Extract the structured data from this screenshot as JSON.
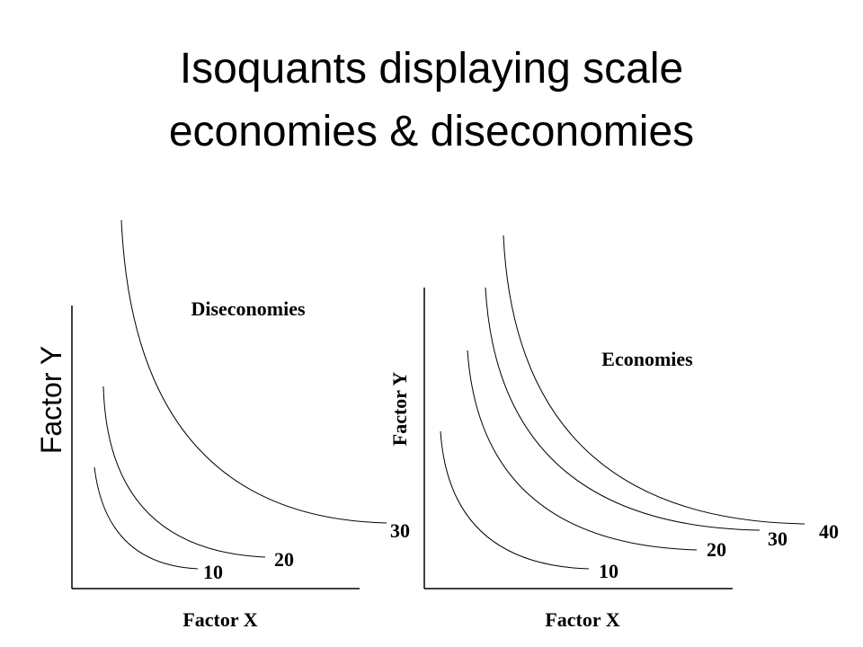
{
  "title": "Isoquants displaying scale economies & diseconomies",
  "panels": [
    {
      "label": "Diseconomies",
      "y_axis_label": "Factor Y",
      "x_axis_label": "Factor X",
      "curves": [
        {
          "label": 10
        },
        {
          "label": 20
        },
        {
          "label": 30
        }
      ]
    },
    {
      "label": "Economies",
      "y_axis_label": "Factor Y",
      "x_axis_label": "Factor X",
      "curves": [
        {
          "label": 10
        },
        {
          "label": 20
        },
        {
          "label": 30
        },
        {
          "label": 40
        }
      ]
    }
  ]
}
